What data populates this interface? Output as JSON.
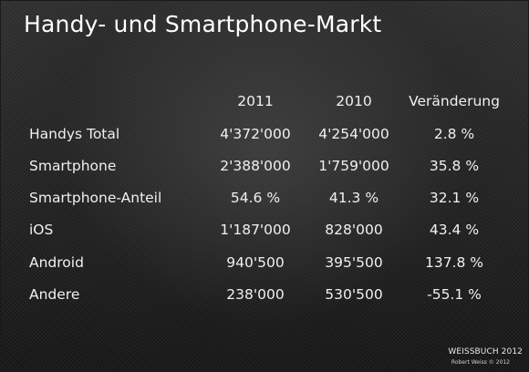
{
  "slide": {
    "title": "Handy- und Smartphone-Markt"
  },
  "table": {
    "headers": [
      "2011",
      "2010",
      "Veränderung"
    ],
    "rows": [
      {
        "label": "Handys Total",
        "y2011": "4'372'000",
        "y2010": "4'254'000",
        "change": "2.8 %"
      },
      {
        "label": "Smartphone",
        "y2011": "2'388'000",
        "y2010": "1'759'000",
        "change": "35.8 %"
      },
      {
        "label": "Smartphone-Anteil",
        "y2011": "54.6 %",
        "y2010": "41.3 %",
        "change": "32.1 %"
      },
      {
        "label": "iOS",
        "y2011": "1'187'000",
        "y2010": "828'000",
        "change": "43.4 %"
      },
      {
        "label": "Android",
        "y2011": "940'500",
        "y2010": "395'500",
        "change": "137.8 %"
      },
      {
        "label": "Andere",
        "y2011": "238'000",
        "y2010": "530'500",
        "change": "-55.1 %"
      }
    ]
  },
  "footer": {
    "brand": "WEISSBUCH 2012",
    "copyright": "Robert Weiss © 2012"
  }
}
